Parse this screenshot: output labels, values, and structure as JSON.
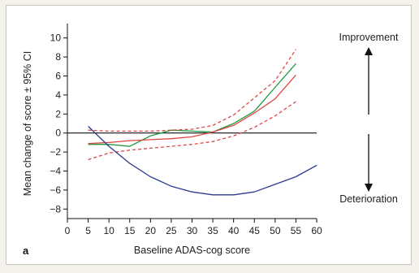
{
  "chart_data": {
    "type": "line",
    "panel_label": "a",
    "xlabel": "Baseline ADAS-cog score",
    "ylabel": "Mean change of score ± 95% CI",
    "xlim": [
      0,
      60
    ],
    "ylim": [
      -9,
      11
    ],
    "x_ticks": [
      0,
      5,
      10,
      15,
      20,
      25,
      30,
      35,
      40,
      45,
      50,
      55,
      60
    ],
    "y_ticks": [
      -8,
      -6,
      -4,
      -2,
      0,
      2,
      4,
      6,
      8,
      10
    ],
    "grid": false,
    "reference_line_y": 0,
    "annotations": {
      "top": "Improvement",
      "bottom": "Deterioration"
    },
    "series": [
      {
        "color": "#1a9a3c",
        "style": "solid",
        "x": [
          5,
          10,
          15,
          20,
          25,
          30,
          35,
          40,
          45,
          50,
          55
        ],
        "y": [
          -1.2,
          -1.2,
          -1.4,
          -0.3,
          0.3,
          0.2,
          0.1,
          1.0,
          2.3,
          4.8,
          7.3
        ]
      },
      {
        "color": "#e04545",
        "style": "solid",
        "x": [
          5,
          10,
          15,
          20,
          25,
          30,
          35,
          40,
          45,
          50,
          55
        ],
        "y": [
          -1.1,
          -1.0,
          -0.8,
          -0.7,
          -0.6,
          -0.4,
          0.1,
          0.8,
          2.1,
          3.6,
          6.1
        ]
      },
      {
        "color": "#e04545",
        "style": "dashed",
        "x": [
          5,
          10,
          15,
          20,
          25,
          30,
          35,
          40,
          45,
          50,
          55
        ],
        "y": [
          0.3,
          0.2,
          0.2,
          0.2,
          0.3,
          0.4,
          0.8,
          1.9,
          3.7,
          5.5,
          8.8
        ]
      },
      {
        "color": "#e04545",
        "style": "dashed",
        "x": [
          5,
          10,
          15,
          20,
          25,
          30,
          35,
          40,
          45,
          50,
          55
        ],
        "y": [
          -2.8,
          -2.1,
          -1.8,
          -1.6,
          -1.4,
          -1.2,
          -0.9,
          -0.3,
          0.6,
          1.8,
          3.3
        ]
      },
      {
        "color": "#2b3990",
        "style": "solid",
        "x": [
          5,
          10,
          15,
          20,
          25,
          30,
          35,
          40,
          45,
          50,
          55,
          60
        ],
        "y": [
          0.7,
          -1.4,
          -3.2,
          -4.6,
          -5.6,
          -6.2,
          -6.5,
          -6.5,
          -6.2,
          -5.4,
          -4.6,
          -3.4
        ]
      }
    ]
  }
}
